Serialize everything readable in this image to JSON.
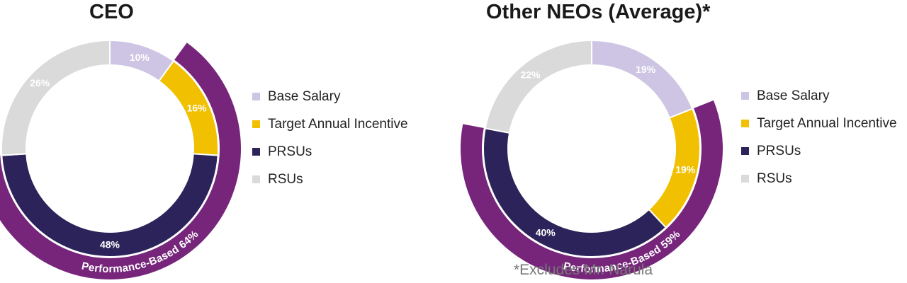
{
  "colors": {
    "Base Salary": "#cdc5e3",
    "Target Annual Incentive": "#f1c000",
    "PRSUs": "#2b2359",
    "RSUs": "#dadada",
    "performance_band": "#76257b",
    "label_text": "#ffffff",
    "legend_text": "#222222",
    "footnote_text": "#777777"
  },
  "chart_data": [
    {
      "type": "pie",
      "variant": "donut",
      "title": "CEO",
      "categories": [
        "Base Salary",
        "Target Annual Incentive",
        "PRSUs",
        "RSUs"
      ],
      "values": [
        10,
        16,
        48,
        26
      ],
      "value_labels": [
        "10%",
        "16%",
        "48%",
        "26%"
      ],
      "start": "12 o'clock, clockwise",
      "legend_position": "right",
      "outer_band": {
        "label": "Performance-Based 64%",
        "value": 64,
        "covers": [
          "Target Annual Incentive",
          "PRSUs"
        ]
      }
    },
    {
      "type": "pie",
      "variant": "donut",
      "title": "Other NEOs (Average)*",
      "categories": [
        "Base Salary",
        "Target Annual Incentive",
        "PRSUs",
        "RSUs"
      ],
      "values": [
        19,
        19,
        40,
        22
      ],
      "value_labels": [
        "19%",
        "19%",
        "40%",
        "22%"
      ],
      "start": "12 o'clock, clockwise",
      "legend_position": "right",
      "outer_band": {
        "label": "Performance-Based 59%",
        "value": 59,
        "covers": [
          "Target Annual Incentive",
          "PRSUs"
        ]
      }
    }
  ],
  "legend": [
    "Base Salary",
    "Target Annual Incentive",
    "PRSUs",
    "RSUs"
  ],
  "footnote": "*Excludes Mr. Narula"
}
